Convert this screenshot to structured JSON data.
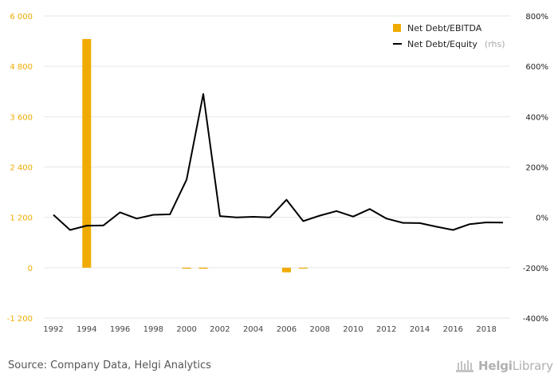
{
  "chart_data": {
    "type": "bar+line",
    "x": [
      "1992",
      "1993",
      "1994",
      "1995",
      "1996",
      "1997",
      "1998",
      "1999",
      "2000",
      "2001",
      "2002",
      "2003",
      "2004",
      "2005",
      "2006",
      "2007",
      "2008",
      "2009",
      "2010",
      "2011",
      "2012",
      "2013",
      "2014",
      "2015",
      "2016",
      "2017",
      "2018",
      "2019"
    ],
    "x_tick_labels": [
      "1992",
      "1994",
      "1996",
      "1998",
      "2000",
      "2002",
      "2004",
      "2006",
      "2008",
      "2010",
      "2012",
      "2014",
      "2016",
      "2018"
    ],
    "y_left": {
      "lim": [
        -1200,
        6000
      ],
      "ticks": [
        -1200,
        0,
        1200,
        2400,
        3600,
        4800,
        6000
      ],
      "tick_labels": [
        "-1 200",
        "0",
        "1 200",
        "2 400",
        "3 600",
        "4 800",
        "6 000"
      ],
      "color": "#f0ab00"
    },
    "y_right": {
      "lim": [
        -400,
        800
      ],
      "ticks": [
        -400,
        -200,
        0,
        200,
        400,
        600,
        800
      ],
      "tick_labels": [
        "-400%",
        "-200%",
        "0%",
        "200%",
        "400%",
        "600%",
        "800%"
      ]
    },
    "series": [
      {
        "name": "Net Debt/EBITDA",
        "type": "bar",
        "axis": "left",
        "color": "#f0ab00",
        "values": [
          null,
          null,
          5450,
          null,
          null,
          null,
          null,
          null,
          -20,
          -25,
          null,
          null,
          null,
          null,
          -110,
          -10,
          null,
          null,
          null,
          null,
          null,
          null,
          null,
          null,
          null,
          null,
          null,
          null
        ]
      },
      {
        "name": "Net Debt/Equity",
        "note": "(rhs)",
        "type": "line",
        "axis": "right",
        "color": "#000000",
        "values": [
          10,
          -50,
          -33,
          -32,
          20,
          -5,
          10,
          12,
          150,
          490,
          5,
          0,
          2,
          0,
          70,
          -15,
          7,
          25,
          3,
          33,
          -5,
          -22,
          -23,
          -37,
          -50,
          -27,
          -20,
          -21
        ]
      }
    ],
    "grid": true,
    "legend": "top-right"
  },
  "footer": {
    "source": "Source: Company Data, Helgi Analytics",
    "brand_main": "Helgi",
    "brand_sub": "Library"
  }
}
